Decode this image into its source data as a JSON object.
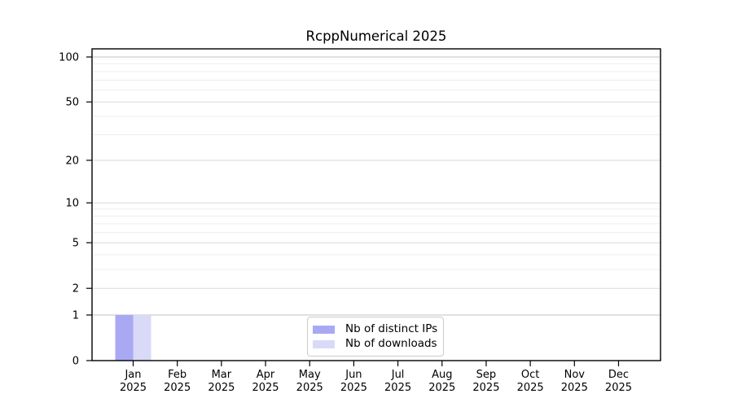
{
  "chart_data": {
    "type": "bar",
    "title": "RcppNumerical 2025",
    "categories": [
      "Jan 2025",
      "Feb 2025",
      "Mar 2025",
      "Apr 2025",
      "May 2025",
      "Jun 2025",
      "Jul 2025",
      "Aug 2025",
      "Sep 2025",
      "Oct 2025",
      "Nov 2025",
      "Dec 2025"
    ],
    "series": [
      {
        "name": "Nb of distinct IPs",
        "color": "#a9a9f3",
        "values": [
          1,
          0,
          0,
          0,
          0,
          0,
          0,
          0,
          0,
          0,
          0,
          0
        ]
      },
      {
        "name": "Nb of downloads",
        "color": "#d9d9f8",
        "values": [
          1,
          0,
          0,
          0,
          0,
          0,
          0,
          0,
          0,
          0,
          0,
          0
        ]
      }
    ],
    "xlabel": "",
    "ylabel": "",
    "yscale": "log1p",
    "yticks": [
      0,
      1,
      2,
      5,
      10,
      20,
      50,
      100
    ],
    "minor_gridlines": [
      3,
      4,
      6,
      7,
      8,
      9,
      30,
      40,
      60,
      70,
      80,
      90
    ],
    "ylim": [
      0,
      113
    ],
    "grid": true,
    "legend_position": "lower center"
  },
  "colors": {
    "bar_distinct_ips": "#a9a9f3",
    "bar_downloads": "#d9d9f8",
    "grid_strong": "#c2c2c2",
    "grid_major": "#dadada",
    "grid_minor": "#ededed",
    "axis": "#000000",
    "text": "#000000",
    "legend_border": "#cbcbcb",
    "background": "#ffffff"
  }
}
